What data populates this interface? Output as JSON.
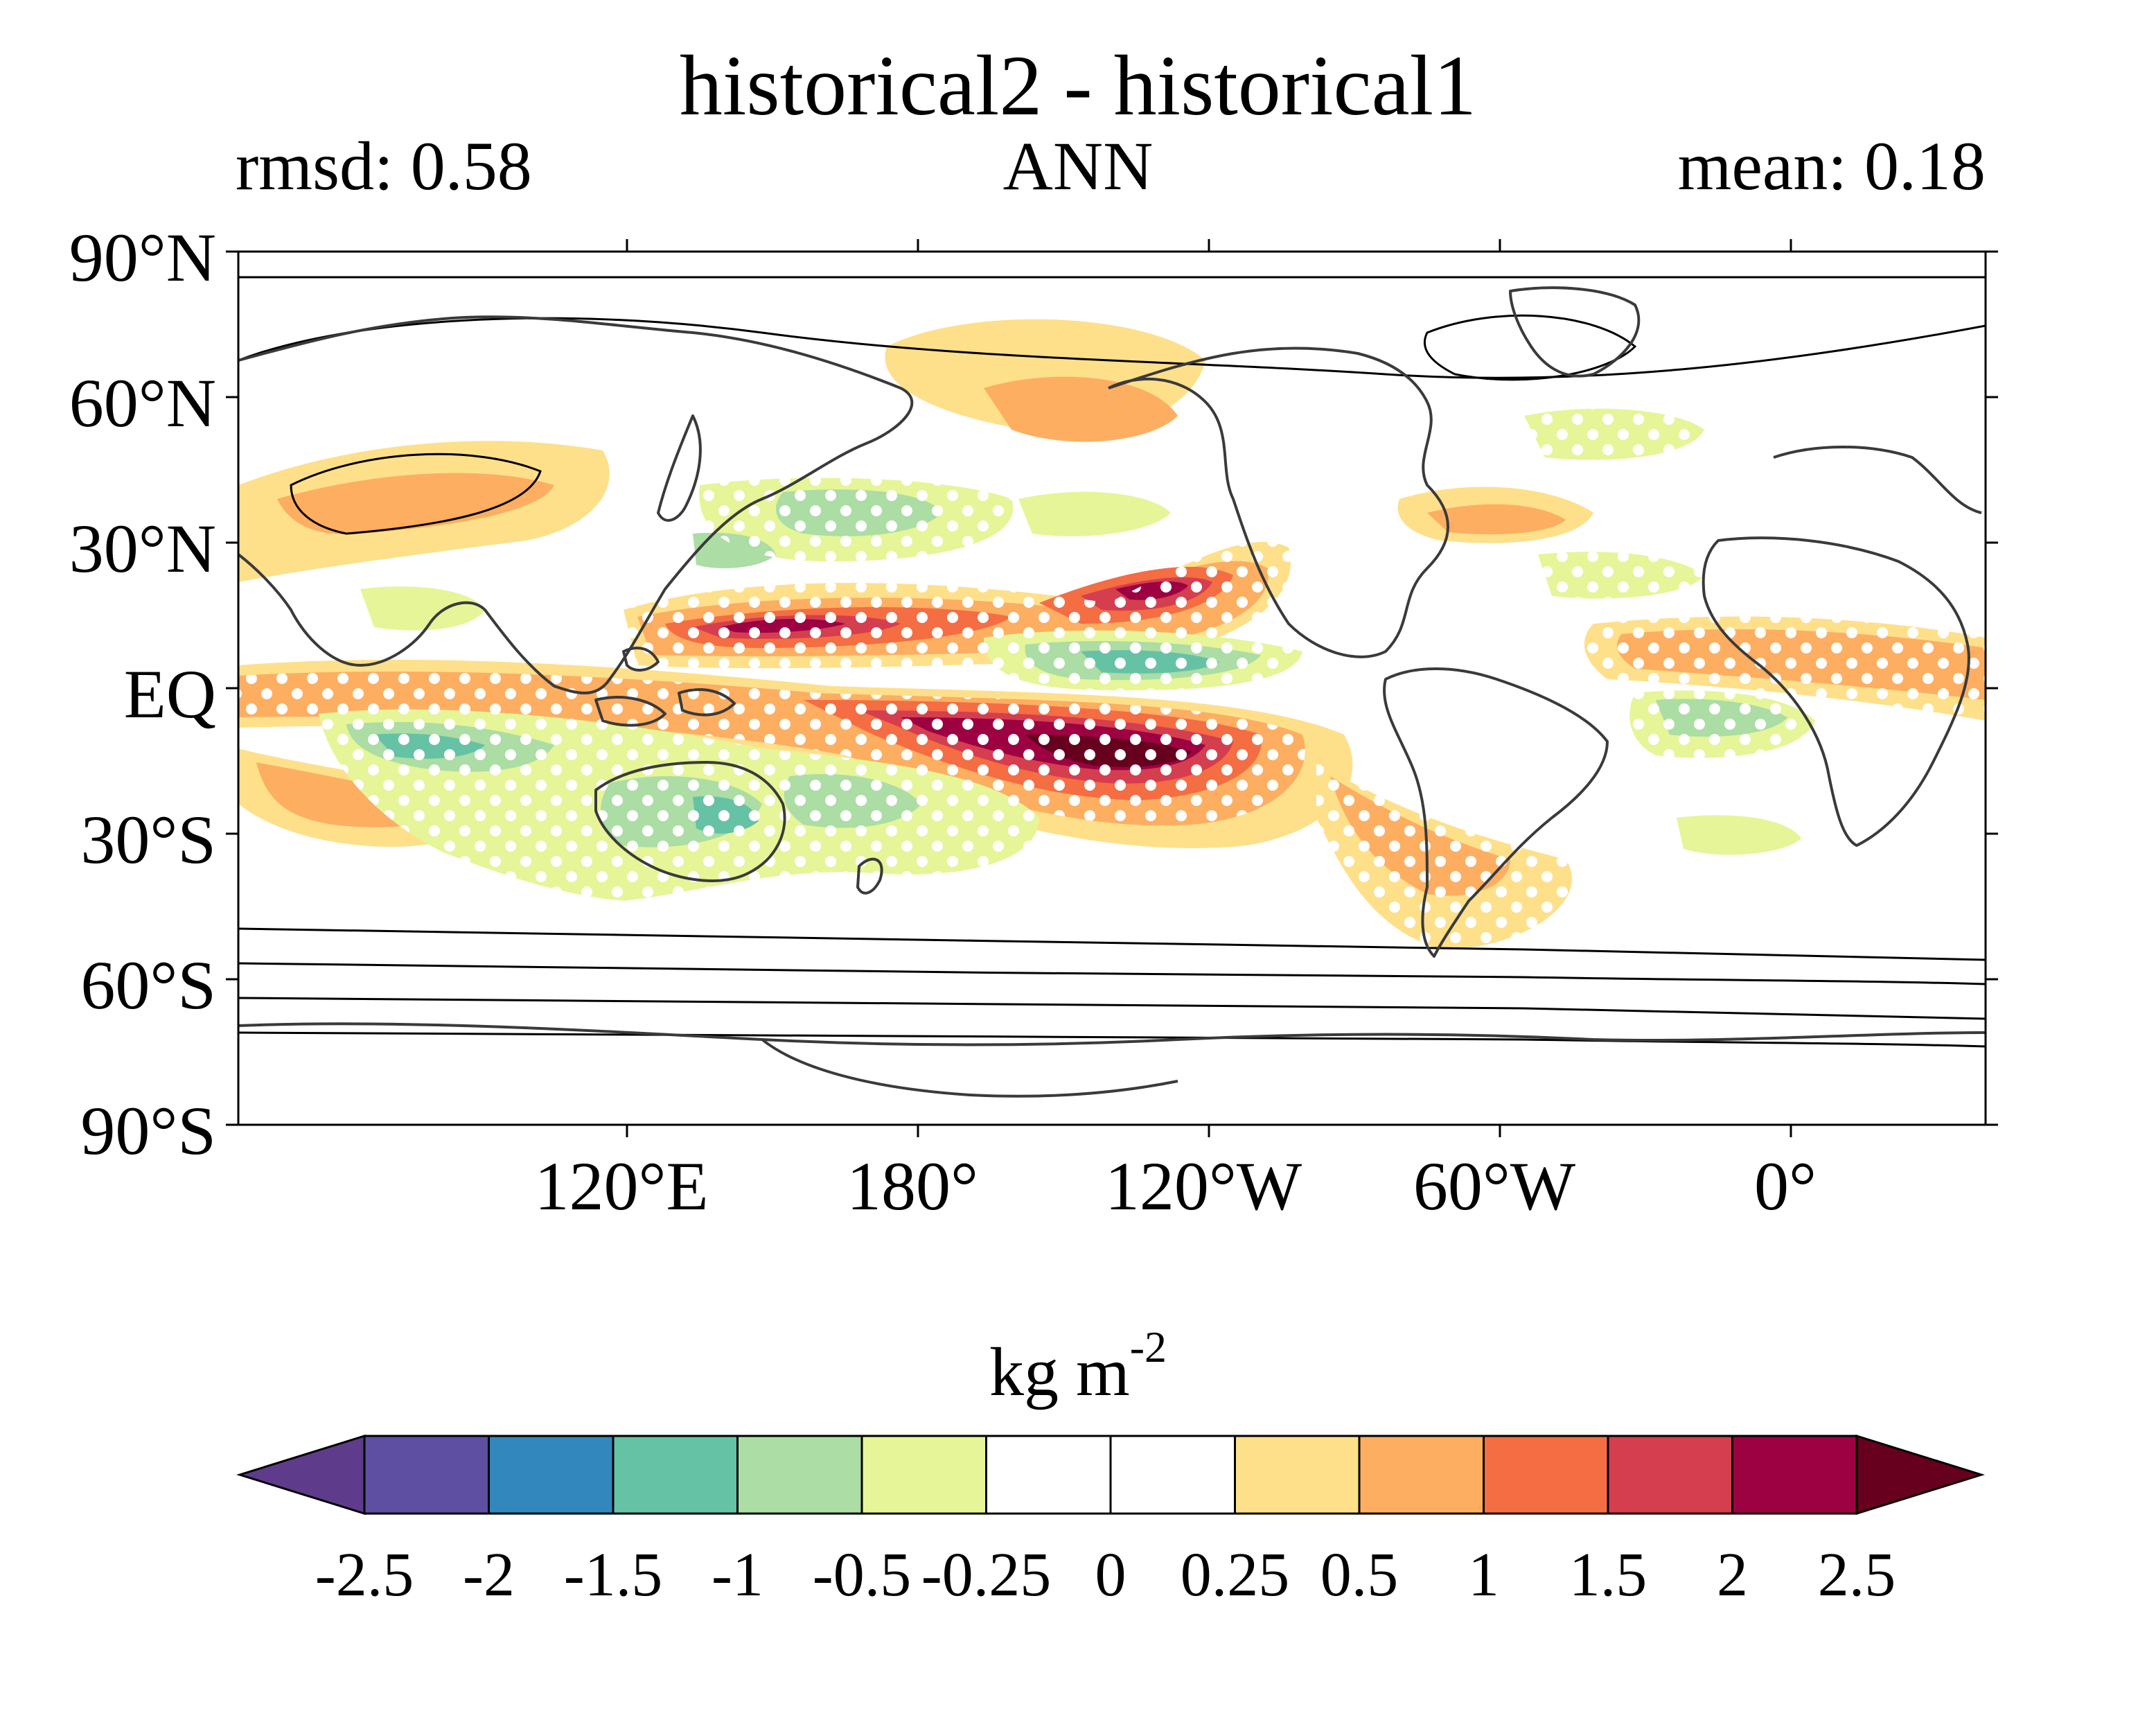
{
  "title": "historical2 - historical1",
  "subtitle_left": "rmsd: 0.58",
  "subtitle_center": "ANN",
  "subtitle_right": "mean: 0.18",
  "lat_labels": [
    "90°N",
    "60°N",
    "30°N",
    "EQ",
    "30°S",
    "60°S",
    "90°S"
  ],
  "lon_labels": [
    "120°E",
    "180°",
    "120°W",
    "60°W",
    "0°"
  ],
  "colorbar": {
    "units_base": "kg m",
    "units_exp": "-2",
    "tick_labels": [
      "-2.5",
      "-2",
      "-1.5",
      "-1",
      "-0.5",
      "-0.25",
      "0",
      "0.25",
      "0.5",
      "1",
      "1.5",
      "2",
      "2.5"
    ],
    "colors": [
      "#5e3c8b",
      "#5e4fa2",
      "#3288bd",
      "#66c2a5",
      "#abdda4",
      "#e6f598",
      "#ffffff",
      "#ffffff",
      "#fee08b",
      "#fdae61",
      "#f46d43",
      "#d53e4f",
      "#9e0142",
      "#67001f"
    ],
    "extend": "both"
  },
  "map": {
    "projection": "equirectangular",
    "central_longitude": 200,
    "stippling": "white dots mark significant regions",
    "contour_color": "#000000",
    "coastline_color": "#3a3a3a"
  }
}
